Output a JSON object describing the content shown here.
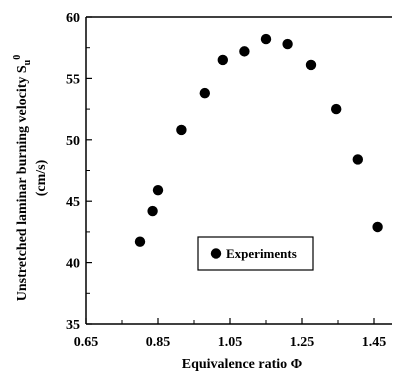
{
  "chart_data": {
    "type": "scatter",
    "xlabel": "Equivalence ratio Φ",
    "ylabel_line1": "Unstretched laminar burning velocity S",
    "ylabel_sub": "u",
    "ylabel_sup": "0",
    "ylabel_line2": "(cm/s)",
    "xlim": [
      0.65,
      1.5
    ],
    "ylim": [
      35,
      60
    ],
    "x_ticks": [
      0.65,
      0.85,
      1.05,
      1.25,
      1.45
    ],
    "x_tick_labels": [
      "0.65",
      "0.85",
      "1.05",
      "1.25",
      "1.45"
    ],
    "y_ticks": [
      35,
      40,
      45,
      50,
      55,
      60
    ],
    "y_tick_labels": [
      "35",
      "40",
      "45",
      "50",
      "55",
      "60"
    ],
    "grid": false,
    "legend_position": "center-bottom",
    "series": [
      {
        "name": "Experiments",
        "color": "#000000",
        "marker": "circle",
        "x": [
          0.8,
          0.835,
          0.85,
          0.915,
          0.98,
          1.03,
          1.09,
          1.15,
          1.21,
          1.275,
          1.345,
          1.405,
          1.46
        ],
        "y": [
          41.7,
          44.2,
          45.9,
          50.8,
          53.8,
          56.5,
          57.2,
          58.2,
          57.8,
          56.1,
          52.5,
          48.4,
          42.9
        ]
      }
    ]
  }
}
